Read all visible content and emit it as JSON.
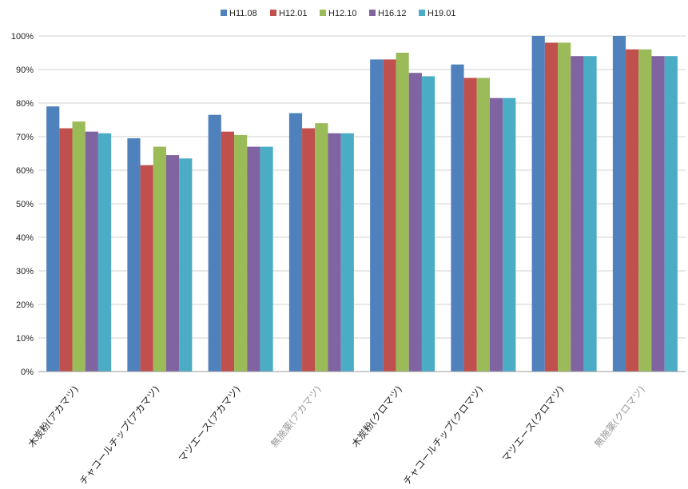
{
  "chart_data": {
    "type": "bar",
    "title": "",
    "xlabel": "",
    "ylabel": "",
    "ylim": [
      0,
      100
    ],
    "y_ticks": [
      "0%",
      "10%",
      "20%",
      "30%",
      "40%",
      "50%",
      "60%",
      "70%",
      "80%",
      "90%",
      "100%"
    ],
    "grid": true,
    "legend_position": "top",
    "categories": [
      "木炭粉(アカマツ)",
      "チャコールチップ(アカマツ)",
      "マツエース(アカマツ)",
      "無施薬(アカマツ)",
      "木炭粉(クロマツ)",
      "チャコールチップ(クロマツ)",
      "マツエース(クロマツ)",
      "無施薬(クロマツ)"
    ],
    "faded_categories": [
      "無施薬(アカマツ)",
      "無施薬(クロマツ)"
    ],
    "series": [
      {
        "name": "H11.08",
        "color": "#4F81BD",
        "values": [
          79,
          69.5,
          76.5,
          77,
          93,
          91.5,
          100,
          100
        ]
      },
      {
        "name": "H12.01",
        "color": "#C0504D",
        "values": [
          72.5,
          61.5,
          71.5,
          72.5,
          93,
          87.5,
          98,
          96
        ]
      },
      {
        "name": "H12.10",
        "color": "#9BBB59",
        "values": [
          74.5,
          67,
          70.5,
          74,
          95,
          87.5,
          98,
          96
        ]
      },
      {
        "name": "H16.12",
        "color": "#8064A2",
        "values": [
          71.5,
          64.5,
          67,
          71,
          89,
          81.5,
          94,
          94
        ]
      },
      {
        "name": "H19.01",
        "color": "#4BACC6",
        "values": [
          71,
          63.5,
          67,
          71,
          88,
          81.5,
          94,
          94
        ]
      }
    ]
  }
}
